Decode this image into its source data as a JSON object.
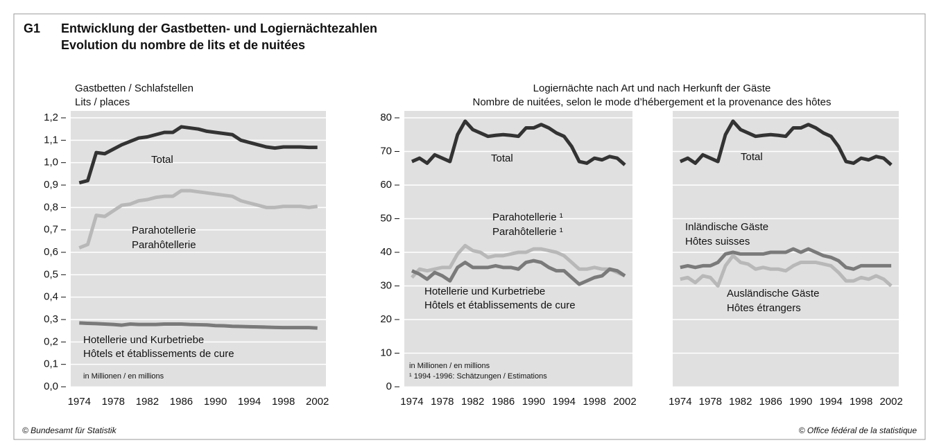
{
  "title_code": "G1",
  "title": [
    "Entwicklung der Gastbetten- und Logiernächtezahlen",
    "Evolution du nombre de lits et de nuitées"
  ],
  "heading": [
    "Logiernächte nach Art und nach Herkunft der Gäste",
    "Nombre de nuitées, selon le mode d’hébergement et la provenance des hôtes"
  ],
  "footer": [
    "© Bundesamt für Statistik",
    "© Office fédéral de la statistique"
  ],
  "chart_data": [
    {
      "type": "line",
      "y_label": [
        "Gastbetten / Schlafstellen",
        "Lits / places"
      ],
      "x": [
        1974,
        1975,
        1976,
        1977,
        1978,
        1979,
        1980,
        1981,
        1982,
        1983,
        1984,
        1985,
        1986,
        1987,
        1988,
        1989,
        1990,
        1991,
        1992,
        1993,
        1994,
        1995,
        1996,
        1997,
        1998,
        1999,
        2000,
        2001,
        2002
      ],
      "xlim": [
        1973,
        2003
      ],
      "xticks": [
        1974,
        1978,
        1982,
        1986,
        1990,
        1994,
        1998,
        2002
      ],
      "ylim": [
        0,
        1.2
      ],
      "yticks": [
        {
          "value": 0,
          "label": "0,0"
        },
        {
          "value": 0.1,
          "label": "0,1"
        },
        {
          "value": 0.2,
          "label": "0,2"
        },
        {
          "value": 0.3,
          "label": "0,3"
        },
        {
          "value": 0.4,
          "label": "0,4"
        },
        {
          "value": 0.5,
          "label": "0,5"
        },
        {
          "value": 0.6,
          "label": "0,6"
        },
        {
          "value": 0.7,
          "label": "0,7"
        },
        {
          "value": 0.8,
          "label": "0,8"
        },
        {
          "value": 0.9,
          "label": "0,9"
        },
        {
          "value": 1.0,
          "label": "1,0"
        },
        {
          "value": 1.1,
          "label": "1,1"
        },
        {
          "value": 1.2,
          "label": "1,2"
        }
      ],
      "grid": true,
      "series": [
        {
          "name": "Total",
          "color": "#333333",
          "values": [
            0.91,
            0.92,
            1.045,
            1.04,
            1.06,
            1.08,
            1.095,
            1.11,
            1.115,
            1.125,
            1.135,
            1.135,
            1.16,
            1.155,
            1.15,
            1.14,
            1.135,
            1.13,
            1.125,
            1.1,
            1.09,
            1.08,
            1.07,
            1.065,
            1.07,
            1.07,
            1.07,
            1.068,
            1.068
          ]
        },
        {
          "name": "Parahotellerie",
          "name_fr": "Parahôtellerie",
          "color": "#b8b8b8",
          "values": [
            0.62,
            0.635,
            0.765,
            0.76,
            0.785,
            0.81,
            0.815,
            0.83,
            0.835,
            0.845,
            0.85,
            0.85,
            0.875,
            0.875,
            0.87,
            0.865,
            0.86,
            0.855,
            0.85,
            0.83,
            0.82,
            0.81,
            0.8,
            0.8,
            0.805,
            0.805,
            0.805,
            0.8,
            0.805
          ]
        },
        {
          "name": "Hotellerie und Kurbetriebe",
          "name_fr": "Hôtels et établissements de cure",
          "color": "#7a7a7a",
          "values": [
            0.285,
            0.283,
            0.282,
            0.28,
            0.278,
            0.275,
            0.28,
            0.278,
            0.278,
            0.278,
            0.28,
            0.28,
            0.28,
            0.278,
            0.277,
            0.276,
            0.273,
            0.272,
            0.27,
            0.269,
            0.268,
            0.267,
            0.266,
            0.265,
            0.264,
            0.264,
            0.264,
            0.264,
            0.262
          ]
        }
      ],
      "notes": [
        "in Millionen / en millions"
      ]
    },
    {
      "type": "line",
      "x": [
        1974,
        1975,
        1976,
        1977,
        1978,
        1979,
        1980,
        1981,
        1982,
        1983,
        1984,
        1985,
        1986,
        1987,
        1988,
        1989,
        1990,
        1991,
        1992,
        1993,
        1994,
        1995,
        1996,
        1997,
        1998,
        1999,
        2000,
        2001,
        2002
      ],
      "xlim": [
        1973,
        2003
      ],
      "xticks": [
        1974,
        1978,
        1982,
        1986,
        1990,
        1994,
        1998,
        2002
      ],
      "ylim": [
        0,
        80
      ],
      "yticks": [
        0,
        10,
        20,
        30,
        40,
        50,
        60,
        70,
        80
      ],
      "grid": true,
      "series": [
        {
          "name": "Total",
          "color": "#333333",
          "values": [
            67,
            68,
            66.5,
            69,
            68,
            67,
            75,
            79,
            76.5,
            75.5,
            74.5,
            74.8,
            75,
            74.8,
            74.5,
            77,
            77,
            78,
            77,
            75.5,
            74.5,
            71.5,
            67,
            66.5,
            68,
            67.5,
            68.5,
            68,
            66
          ]
        },
        {
          "name": "Parahotellerie ¹",
          "name_fr": "Parahôtellerie ¹",
          "color": "#b8b8b8",
          "values": [
            32.5,
            35,
            34.5,
            35,
            35.5,
            35.5,
            39.5,
            42,
            40.5,
            40,
            38.5,
            39,
            39,
            39.5,
            40,
            40,
            41,
            41,
            40.5,
            40,
            39,
            37,
            35,
            35,
            35.5,
            35,
            35,
            34,
            33
          ]
        },
        {
          "name": "Hotellerie und Kurbetriebe",
          "name_fr": "Hôtels et établissements de cure",
          "color": "#7a7a7a",
          "values": [
            34.5,
            33.5,
            32,
            34,
            33,
            31.5,
            35.5,
            37,
            35.5,
            35.5,
            35.5,
            36,
            35.5,
            35.5,
            35,
            37,
            37.5,
            37,
            35.5,
            34.5,
            34.5,
            32.5,
            30.5,
            31.5,
            32.5,
            33,
            35,
            34.5,
            33
          ]
        }
      ],
      "notes": [
        "in Millionen / en millions",
        "¹ 1994 -1996: Schätzungen / Estimations"
      ]
    },
    {
      "type": "line",
      "x": [
        1974,
        1975,
        1976,
        1977,
        1978,
        1979,
        1980,
        1981,
        1982,
        1983,
        1984,
        1985,
        1986,
        1987,
        1988,
        1989,
        1990,
        1991,
        1992,
        1993,
        1994,
        1995,
        1996,
        1997,
        1998,
        1999,
        2000,
        2001,
        2002
      ],
      "xlim": [
        1973,
        2003
      ],
      "xticks": [
        1974,
        1978,
        1982,
        1986,
        1990,
        1994,
        1998,
        2002
      ],
      "ylim": [
        0,
        80
      ],
      "grid": true,
      "series": [
        {
          "name": "Total",
          "color": "#333333",
          "values": [
            67,
            68,
            66.5,
            69,
            68,
            67,
            75,
            79,
            76.5,
            75.5,
            74.5,
            74.8,
            75,
            74.8,
            74.5,
            77,
            77,
            78,
            77,
            75.5,
            74.5,
            71.5,
            67,
            66.5,
            68,
            67.5,
            68.5,
            68,
            66
          ]
        },
        {
          "name": "Inländische Gäste",
          "name_fr": "Hôtes suisses",
          "color": "#7a7a7a",
          "values": [
            35.5,
            36,
            35.5,
            36,
            36,
            37,
            39.5,
            40,
            39.5,
            39.5,
            39.5,
            39.5,
            40,
            40,
            40,
            41,
            40,
            41,
            40,
            39,
            38.5,
            37.5,
            35.5,
            35,
            36,
            36,
            36,
            36,
            36
          ]
        },
        {
          "name": "Ausländische Gäste",
          "name_fr": "Hôtes étrangers",
          "color": "#b8b8b8",
          "values": [
            32,
            32.5,
            31,
            33,
            32.5,
            30,
            36,
            39,
            37,
            36.5,
            35,
            35.5,
            35,
            35,
            34.5,
            36,
            37,
            37,
            37,
            36.5,
            36,
            34,
            31.5,
            31.5,
            32.5,
            32,
            33,
            32,
            30
          ]
        }
      ]
    }
  ]
}
